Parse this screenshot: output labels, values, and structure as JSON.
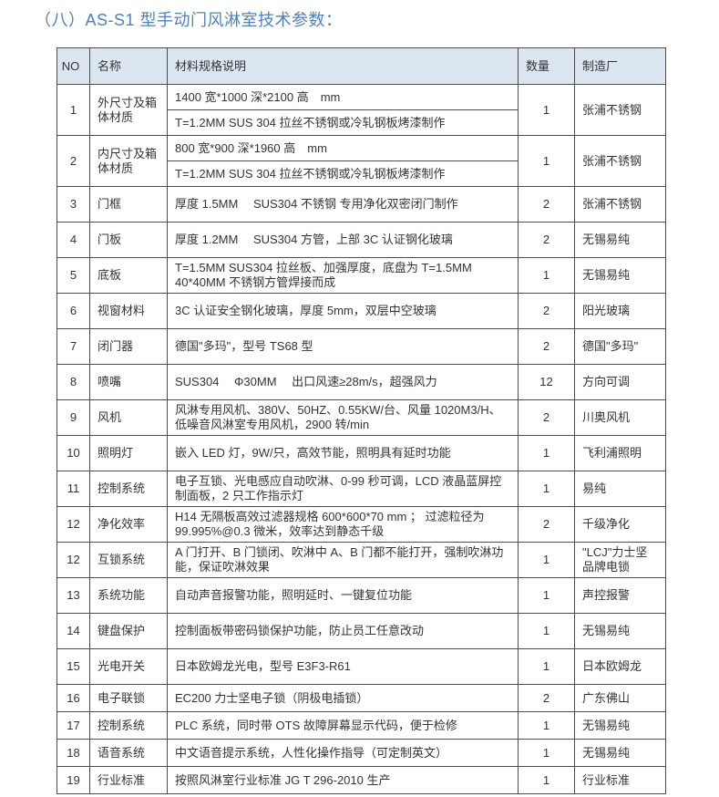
{
  "page": {
    "title": "（八）AS-S1 型手动门风淋室技术参数：",
    "title_color": "#4f81bd",
    "header_bg": "#dce6f1",
    "border_color": "#4c4c4c"
  },
  "table": {
    "headers": [
      "NO",
      "名称",
      "材料规格说明",
      "数量",
      "制造厂"
    ],
    "rows": [
      {
        "no": "1",
        "name": "外尺寸及箱体材质",
        "specs": [
          "1400 宽*1000 深*2100 高　mm",
          "T=1.2MM SUS 304 拉丝不锈钢或冷轧钢板烤漆制作"
        ],
        "qty": "1",
        "maker": "张浦不锈钢"
      },
      {
        "no": "2",
        "name": "内尺寸及箱体材质",
        "specs": [
          "800 宽*900 深*1960 高　mm",
          "T=1.2MM SUS 304 拉丝不锈钢或冷轧钢板烤漆制作"
        ],
        "qty": "1",
        "maker": "张浦不锈钢"
      },
      {
        "no": "3",
        "name": "门框",
        "spec": "厚度 1.5MM　 SUS304 不锈钢  专用净化双密闭门制作",
        "qty": "2",
        "maker": "张浦不锈钢"
      },
      {
        "no": "4",
        "name": "门板",
        "spec": "厚度 1.2MM　 SUS304 方管，上部 3C 认证钢化玻璃",
        "qty": "2",
        "maker": "无锡易纯"
      },
      {
        "no": "5",
        "name": "底板",
        "spec": "T=1.5MM SUS304 拉丝板、加强厚度，底盘为 T=1.5MM 40*40MM 不锈钢方管焊接而成",
        "qty": "1",
        "maker": "无锡易纯"
      },
      {
        "no": "6",
        "name": "视窗材料",
        "spec": "3C 认证安全钢化玻璃，厚度 5mm，双层中空玻璃",
        "qty": "2",
        "maker": "阳光玻璃"
      },
      {
        "no": "7",
        "name": "闭门器",
        "spec": "德国\"多玛\"，型号 TS68 型",
        "qty": "2",
        "maker": "德国\"多玛\""
      },
      {
        "no": "8",
        "name": "喷嘴",
        "spec": "SUS304　 Φ30MM　 出口风速≥28m/s，超强风力",
        "qty": "12",
        "maker": "方向可调"
      },
      {
        "no": "9",
        "name": "风机",
        "spec": "风淋专用风机、380V、50HZ、0.55KW/台、风量 1020M3/H、低噪音风淋室专用风机，2900 转/min",
        "qty": "2",
        "maker": "川奥风机"
      },
      {
        "no": "10",
        "name": "照明灯",
        "spec": "嵌入 LED 灯，9W/只，高效节能，照明具有延时功能",
        "qty": "1",
        "maker": "飞利浦照明"
      },
      {
        "no": "11",
        "name": "控制系统",
        "spec": "电子互锁、光电感应自动吹淋、0-99 秒可调，LCD 液晶蓝屏控制面板，2 只工作指示灯",
        "qty": "1",
        "maker": "易纯"
      },
      {
        "no": "12",
        "name": "净化效率",
        "spec": "H14 无隔板高效过滤器规格 600*600*70 mm ； 过滤粒径为 99.995%@0.3 微米，效率达到静态千级",
        "qty": "2",
        "maker": "千级净化"
      },
      {
        "no": "12",
        "name": "互锁系统",
        "spec": "A 门打开、B 门锁闭、吹淋中 A、B 门都不能打开，强制吹淋功能，保证吹淋效果",
        "qty": "1",
        "maker": "\"LCJ\"力士坚品牌电锁"
      },
      {
        "no": "13",
        "name": "系统功能",
        "spec": "自动声音报警功能，照明延时、一键复位功能",
        "qty": "1",
        "maker": "声控报警"
      },
      {
        "no": "14",
        "name": "键盘保护",
        "spec": "控制面板带密码锁保护功能，防止员工任意改动",
        "qty": "1",
        "maker": "无锡易纯"
      },
      {
        "no": "15",
        "name": "光电开关",
        "spec": "日本欧姆龙光电，型号  E3F3-R61",
        "qty": "1",
        "maker": "日本欧姆龙"
      },
      {
        "no": "16",
        "name": "电子联锁",
        "spec": "EC200 力士坚电子锁（阴极电插锁）",
        "qty": "2",
        "maker": "广东佛山"
      },
      {
        "no": "17",
        "name": "控制系统",
        "spec": "PLC 系统，同时带 OTS 故障屏幕显示代码，便于检修",
        "qty": "1",
        "maker": "无锡易纯"
      },
      {
        "no": "18",
        "name": "语音系统",
        "spec": "中文语音提示系统，人性化操作指导（可定制英文）",
        "qty": "1",
        "maker": "无锡易纯"
      },
      {
        "no": "19",
        "name": "行业标准",
        "spec": "按照风淋室行业标准  JG T 296-2010 生产",
        "qty": "1",
        "maker": "行业标准"
      }
    ]
  }
}
